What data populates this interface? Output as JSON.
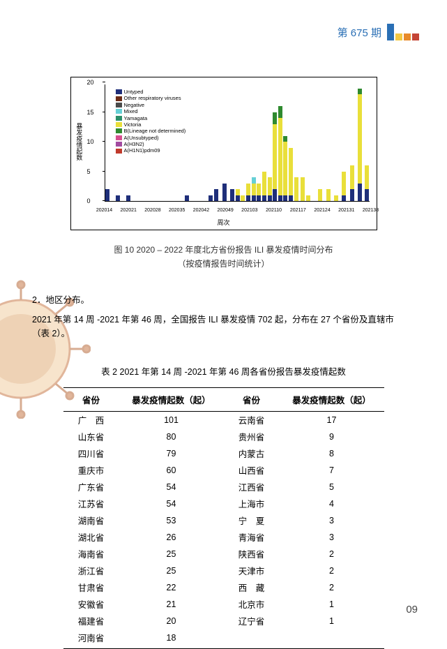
{
  "header": {
    "issue": "第 675 期"
  },
  "chart": {
    "type": "stacked-bar",
    "ylabel": "暴发疫情起数",
    "xlabel": "周次",
    "ylim": [
      0,
      20
    ],
    "ytick_step": 5,
    "yticks": [
      0,
      5,
      10,
      15,
      20
    ],
    "background_color": "#ffffff",
    "axis_color": "#000000",
    "legend_items": [
      {
        "label": "Untyped",
        "color": "#1f2f7a"
      },
      {
        "label": "Other respiratory viruses",
        "color": "#6b2a15"
      },
      {
        "label": "Negative",
        "color": "#4a4a4a"
      },
      {
        "label": "Mixed",
        "color": "#66d0d6"
      },
      {
        "label": "Yamagata",
        "color": "#2b8f6a"
      },
      {
        "label": "Victoria",
        "color": "#e9df3a"
      },
      {
        "label": "B(Lineage not determined)",
        "color": "#2f8a2f"
      },
      {
        "label": "A(Unsubtyped)",
        "color": "#d74e8f"
      },
      {
        "label": "A(H3N2)",
        "color": "#a24aa0"
      },
      {
        "label": "A(H1N1)pdm09",
        "color": "#c03a2b"
      }
    ],
    "xticks": [
      "202014",
      "202021",
      "202028",
      "202035",
      "202042",
      "202049",
      "202103",
      "202110",
      "202117",
      "202124",
      "202131",
      "202138"
    ],
    "series": [
      {
        "x": 0.0,
        "stack": [
          {
            "c": "#1f2f7a",
            "v": 2
          }
        ]
      },
      {
        "x": 0.04,
        "stack": [
          {
            "c": "#1f2f7a",
            "v": 1
          }
        ]
      },
      {
        "x": 0.08,
        "stack": [
          {
            "c": "#1f2f7a",
            "v": 1
          }
        ]
      },
      {
        "x": 0.3,
        "stack": [
          {
            "c": "#1f2f7a",
            "v": 1
          }
        ]
      },
      {
        "x": 0.39,
        "stack": [
          {
            "c": "#1f2f7a",
            "v": 1
          }
        ]
      },
      {
        "x": 0.41,
        "stack": [
          {
            "c": "#1f2f7a",
            "v": 2
          }
        ]
      },
      {
        "x": 0.44,
        "stack": [
          {
            "c": "#1f2f7a",
            "v": 3
          }
        ]
      },
      {
        "x": 0.47,
        "stack": [
          {
            "c": "#1f2f7a",
            "v": 2
          }
        ]
      },
      {
        "x": 0.49,
        "stack": [
          {
            "c": "#1f2f7a",
            "v": 1
          },
          {
            "c": "#e9df3a",
            "v": 1
          }
        ]
      },
      {
        "x": 0.51,
        "stack": [
          {
            "c": "#e9df3a",
            "v": 1
          }
        ]
      },
      {
        "x": 0.53,
        "stack": [
          {
            "c": "#1f2f7a",
            "v": 1
          },
          {
            "c": "#e9df3a",
            "v": 2
          }
        ]
      },
      {
        "x": 0.55,
        "stack": [
          {
            "c": "#1f2f7a",
            "v": 1
          },
          {
            "c": "#e9df3a",
            "v": 2
          },
          {
            "c": "#66d0d6",
            "v": 1
          }
        ]
      },
      {
        "x": 0.57,
        "stack": [
          {
            "c": "#1f2f7a",
            "v": 1
          },
          {
            "c": "#e9df3a",
            "v": 2
          }
        ]
      },
      {
        "x": 0.59,
        "stack": [
          {
            "c": "#1f2f7a",
            "v": 1
          },
          {
            "c": "#e9df3a",
            "v": 4
          }
        ]
      },
      {
        "x": 0.61,
        "stack": [
          {
            "c": "#1f2f7a",
            "v": 1
          },
          {
            "c": "#e9df3a",
            "v": 3
          }
        ]
      },
      {
        "x": 0.63,
        "stack": [
          {
            "c": "#1f2f7a",
            "v": 2
          },
          {
            "c": "#e9df3a",
            "v": 11
          },
          {
            "c": "#2f8a2f",
            "v": 2
          }
        ]
      },
      {
        "x": 0.65,
        "stack": [
          {
            "c": "#1f2f7a",
            "v": 1
          },
          {
            "c": "#e9df3a",
            "v": 13
          },
          {
            "c": "#2f8a2f",
            "v": 2
          }
        ]
      },
      {
        "x": 0.67,
        "stack": [
          {
            "c": "#1f2f7a",
            "v": 1
          },
          {
            "c": "#e9df3a",
            "v": 9
          },
          {
            "c": "#2f8a2f",
            "v": 1
          }
        ]
      },
      {
        "x": 0.69,
        "stack": [
          {
            "c": "#1f2f7a",
            "v": 1
          },
          {
            "c": "#e9df3a",
            "v": 8
          }
        ]
      },
      {
        "x": 0.71,
        "stack": [
          {
            "c": "#e9df3a",
            "v": 4
          }
        ]
      },
      {
        "x": 0.735,
        "stack": [
          {
            "c": "#e9df3a",
            "v": 4
          }
        ]
      },
      {
        "x": 0.755,
        "stack": [
          {
            "c": "#e9df3a",
            "v": 1
          }
        ]
      },
      {
        "x": 0.8,
        "stack": [
          {
            "c": "#e9df3a",
            "v": 2
          }
        ]
      },
      {
        "x": 0.83,
        "stack": [
          {
            "c": "#e9df3a",
            "v": 2
          }
        ]
      },
      {
        "x": 0.86,
        "stack": [
          {
            "c": "#e9df3a",
            "v": 1
          }
        ]
      },
      {
        "x": 0.89,
        "stack": [
          {
            "c": "#1f2f7a",
            "v": 1
          },
          {
            "c": "#e9df3a",
            "v": 4
          }
        ]
      },
      {
        "x": 0.92,
        "stack": [
          {
            "c": "#1f2f7a",
            "v": 2
          },
          {
            "c": "#e9df3a",
            "v": 4
          }
        ]
      },
      {
        "x": 0.95,
        "stack": [
          {
            "c": "#1f2f7a",
            "v": 3
          },
          {
            "c": "#e9df3a",
            "v": 15
          },
          {
            "c": "#2f8a2f",
            "v": 1
          }
        ]
      },
      {
        "x": 0.975,
        "stack": [
          {
            "c": "#1f2f7a",
            "v": 2
          },
          {
            "c": "#e9df3a",
            "v": 4
          }
        ]
      }
    ]
  },
  "caption": {
    "line1": "图 10 2020 – 2022 年度北方省份报告 ILI 暴发疫情时间分布",
    "line2": "（按疫情报告时间统计）"
  },
  "section_heading": "2．地区分布。",
  "paragraph": "2021 年第 14 周 -2021 年第 46 周，全国报告 ILI 暴发疫情 702 起，分布在 27 个省份及直辖市（表 2）。",
  "table": {
    "title": "表 2 2021 年第 14 周 -2021 年第 46 周各省份报告暴发疫情起数",
    "headers": {
      "province": "省份",
      "count": "暴发疫情起数（起）"
    },
    "left": [
      {
        "province": "广　西",
        "count": 101
      },
      {
        "province": "山东省",
        "count": 80
      },
      {
        "province": "四川省",
        "count": 79
      },
      {
        "province": "重庆市",
        "count": 60
      },
      {
        "province": "广东省",
        "count": 54
      },
      {
        "province": "江苏省",
        "count": 54
      },
      {
        "province": "湖南省",
        "count": 53
      },
      {
        "province": "湖北省",
        "count": 26
      },
      {
        "province": "海南省",
        "count": 25
      },
      {
        "province": "浙江省",
        "count": 25
      },
      {
        "province": "甘肃省",
        "count": 22
      },
      {
        "province": "安徽省",
        "count": 21
      },
      {
        "province": "福建省",
        "count": 20
      },
      {
        "province": "河南省",
        "count": 18
      }
    ],
    "right": [
      {
        "province": "云南省",
        "count": 17
      },
      {
        "province": "贵州省",
        "count": 9
      },
      {
        "province": "内蒙古",
        "count": 8
      },
      {
        "province": "山西省",
        "count": 7
      },
      {
        "province": "江西省",
        "count": 5
      },
      {
        "province": "上海市",
        "count": 4
      },
      {
        "province": "宁　夏",
        "count": 3
      },
      {
        "province": "青海省",
        "count": 3
      },
      {
        "province": "陕西省",
        "count": 2
      },
      {
        "province": "天津市",
        "count": 2
      },
      {
        "province": "西　藏",
        "count": 2
      },
      {
        "province": "北京市",
        "count": 1
      },
      {
        "province": "辽宁省",
        "count": 1
      }
    ]
  },
  "page_number": "09"
}
